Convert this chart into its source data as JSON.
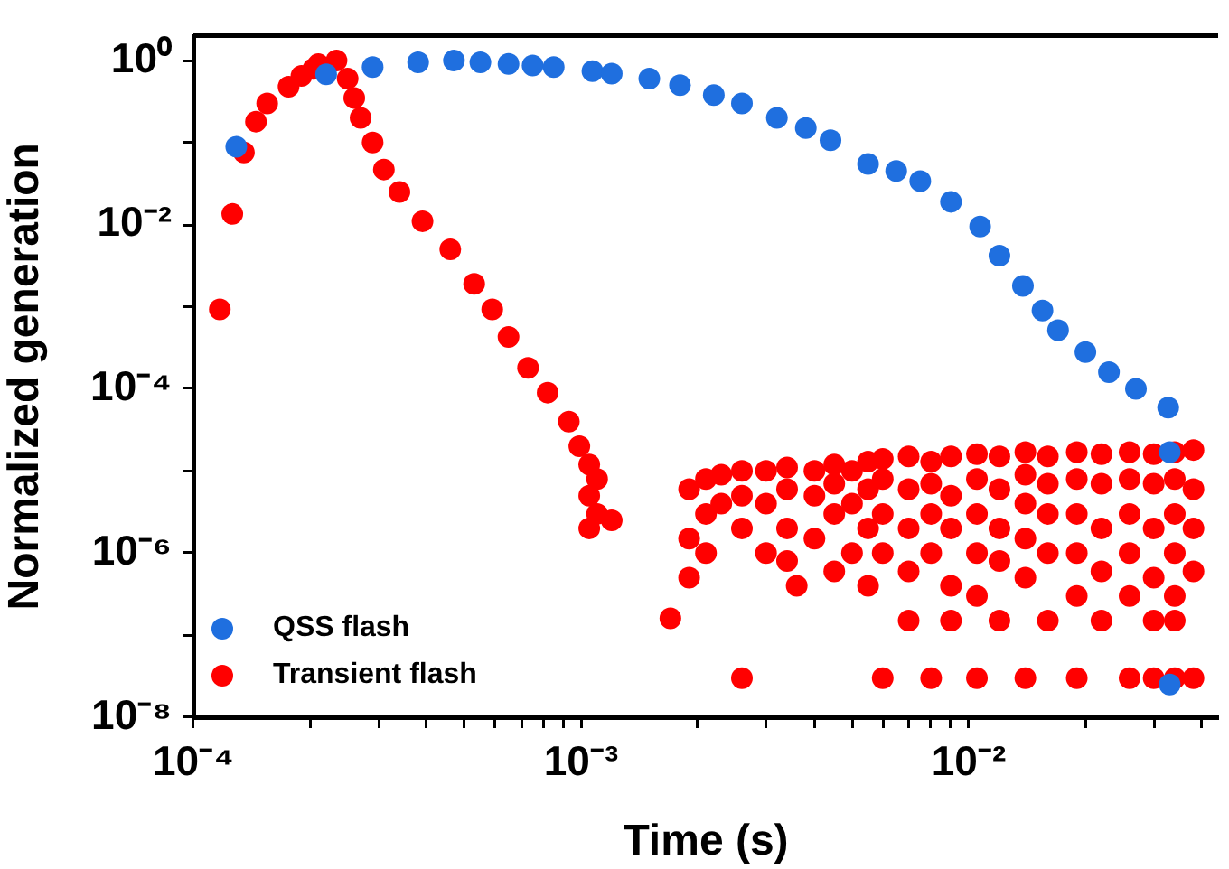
{
  "chart_data": {
    "type": "scatter",
    "xlabel": "Time (s)",
    "ylabel": "Normalized generation",
    "log": "xy",
    "grid": false,
    "legend": "bottom left",
    "marker": "circle",
    "xlim": [
      0.0001,
      0.044
    ],
    "ylim": [
      1e-08,
      2
    ],
    "xticks": [
      {
        "value": 0.0001,
        "label": "10⁻⁴"
      },
      {
        "value": 0.0002,
        "label": null
      },
      {
        "value": 0.0003,
        "label": null
      },
      {
        "value": 0.0004,
        "label": null
      },
      {
        "value": 0.0005,
        "label": null
      },
      {
        "value": 0.0006,
        "label": null
      },
      {
        "value": 0.0007,
        "label": null
      },
      {
        "value": 0.0008,
        "label": null
      },
      {
        "value": 0.0009,
        "label": null
      },
      {
        "value": 0.001,
        "label": "10⁻³"
      },
      {
        "value": 0.002,
        "label": null
      },
      {
        "value": 0.003,
        "label": null
      },
      {
        "value": 0.004,
        "label": null
      },
      {
        "value": 0.005,
        "label": null
      },
      {
        "value": 0.006,
        "label": null
      },
      {
        "value": 0.007,
        "label": null
      },
      {
        "value": 0.008,
        "label": null
      },
      {
        "value": 0.009,
        "label": null
      },
      {
        "value": 0.01,
        "label": "10⁻²"
      },
      {
        "value": 0.02,
        "label": null
      },
      {
        "value": 0.03,
        "label": null
      },
      {
        "value": 0.04,
        "label": null
      }
    ],
    "yticks": [
      {
        "value": 1e-08,
        "label": "10⁻⁸"
      },
      {
        "value": 1e-07,
        "label": null
      },
      {
        "value": 1e-06,
        "label": "10⁻⁶"
      },
      {
        "value": 1e-05,
        "label": null
      },
      {
        "value": 0.0001,
        "label": "10⁻⁴"
      },
      {
        "value": 0.001,
        "label": null
      },
      {
        "value": 0.01,
        "label": "10⁻²"
      },
      {
        "value": 0.1,
        "label": null
      },
      {
        "value": 1,
        "label": "10⁰"
      }
    ],
    "series": [
      {
        "name": "QSS flash",
        "color": "#1f6fdf",
        "x": [
          0.000129,
          0.00022,
          0.00029,
          0.00038,
          0.00047,
          0.00055,
          0.00065,
          0.00075,
          0.00085,
          0.00107,
          0.0012,
          0.0015,
          0.0018,
          0.0022,
          0.0026,
          0.0032,
          0.0038,
          0.0044,
          0.0055,
          0.0065,
          0.0075,
          0.009,
          0.0107,
          0.012,
          0.0138,
          0.0155,
          0.017,
          0.02,
          0.023,
          0.027,
          0.0327,
          0.033,
          0.033
        ],
        "values": [
          0.089,
          0.68,
          0.83,
          0.95,
          1.0,
          0.95,
          0.91,
          0.87,
          0.83,
          0.74,
          0.69,
          0.6,
          0.5,
          0.38,
          0.3,
          0.2,
          0.15,
          0.107,
          0.055,
          0.045,
          0.034,
          0.019,
          0.0095,
          0.0042,
          0.0018,
          0.0009,
          0.00052,
          0.00028,
          0.00016,
          0.0001,
          5.9e-05,
          1.7e-05,
          2.5e-08
        ]
      },
      {
        "name": "Transient flash",
        "color": "#ff0000",
        "x": [
          0.000117,
          0.000126,
          0.000135,
          0.000145,
          0.000155,
          0.000176,
          0.000204,
          0.000234,
          0.00027,
          0.00031,
          0.00046,
          0.00065,
          0.00093,
          0.00019,
          0.00021,
          0.00025,
          0.00026,
          0.00029,
          0.00034,
          0.00039,
          0.00053,
          0.00059,
          0.00073,
          0.00082,
          0.00099,
          0.00105,
          0.00105,
          0.00105,
          0.0011,
          0.0011,
          0.0012,
          0.0017,
          0.0019,
          0.0019,
          0.0019,
          0.0021,
          0.0021,
          0.0021,
          0.0023,
          0.0023,
          0.0026,
          0.0026,
          0.0026,
          0.0026,
          0.003,
          0.003,
          0.003,
          0.0034,
          0.0034,
          0.0034,
          0.0034,
          0.0036,
          0.004,
          0.004,
          0.004,
          0.0045,
          0.0045,
          0.0045,
          0.0045,
          0.005,
          0.005,
          0.005,
          0.0055,
          0.0055,
          0.0055,
          0.0055,
          0.006,
          0.006,
          0.006,
          0.006,
          0.006,
          0.007,
          0.007,
          0.007,
          0.007,
          0.007,
          0.008,
          0.008,
          0.008,
          0.008,
          0.008,
          0.009,
          0.009,
          0.009,
          0.009,
          0.009,
          0.0105,
          0.0105,
          0.0105,
          0.0105,
          0.0105,
          0.0105,
          0.012,
          0.012,
          0.012,
          0.012,
          0.012,
          0.014,
          0.014,
          0.014,
          0.014,
          0.014,
          0.014,
          0.016,
          0.016,
          0.016,
          0.016,
          0.016,
          0.019,
          0.019,
          0.019,
          0.019,
          0.019,
          0.019,
          0.022,
          0.022,
          0.022,
          0.022,
          0.022,
          0.026,
          0.026,
          0.026,
          0.026,
          0.026,
          0.026,
          0.03,
          0.03,
          0.03,
          0.03,
          0.03,
          0.03,
          0.034,
          0.034,
          0.034,
          0.034,
          0.034,
          0.034,
          0.034,
          0.038,
          0.038,
          0.038,
          0.038,
          0.038
        ],
        "values": [
          0.00093,
          0.0135,
          0.076,
          0.18,
          0.3,
          0.48,
          0.79,
          1.0,
          0.2,
          0.047,
          0.005,
          0.00043,
          4e-05,
          0.65,
          0.9,
          0.6,
          0.35,
          0.1,
          0.025,
          0.011,
          0.0019,
          0.00093,
          0.00018,
          9e-05,
          2e-05,
          1.2e-05,
          5e-06,
          2e-06,
          8e-06,
          3e-06,
          2.5e-06,
          1.6e-07,
          6e-06,
          1.5e-06,
          5e-07,
          8e-06,
          3e-06,
          1e-06,
          9e-06,
          4e-06,
          1e-05,
          5e-06,
          2e-06,
          3e-08,
          1e-05,
          4e-06,
          1e-06,
          1.1e-05,
          6e-06,
          2e-06,
          8e-07,
          4e-07,
          1e-05,
          5e-06,
          1.5e-06,
          1.2e-05,
          7e-06,
          3e-06,
          6e-07,
          1e-05,
          4e-06,
          1e-06,
          1.3e-05,
          6e-06,
          2e-06,
          4e-07,
          1.4e-05,
          8e-06,
          3e-06,
          1e-06,
          3e-08,
          1.5e-05,
          6e-06,
          2e-06,
          6e-07,
          1.5e-07,
          1.3e-05,
          7e-06,
          3e-06,
          1e-06,
          3e-08,
          1.5e-05,
          5e-06,
          2e-06,
          4e-07,
          1.5e-07,
          1.6e-05,
          8e-06,
          3e-06,
          1e-06,
          3e-07,
          3e-08,
          1.5e-05,
          6e-06,
          2e-06,
          8e-07,
          1.5e-07,
          1.7e-05,
          9e-06,
          4e-06,
          1.5e-06,
          5e-07,
          3e-08,
          1.5e-05,
          7e-06,
          3e-06,
          1e-06,
          1.5e-07,
          1.7e-05,
          8e-06,
          3e-06,
          1e-06,
          3e-07,
          3e-08,
          1.6e-05,
          7e-06,
          2e-06,
          6e-07,
          1.5e-07,
          1.7e-05,
          8e-06,
          3e-06,
          1e-06,
          3e-07,
          3e-08,
          1.6e-05,
          7e-06,
          2e-06,
          5e-07,
          1.5e-07,
          3e-08,
          1.7e-05,
          8e-06,
          3e-06,
          1e-06,
          3e-07,
          1.5e-07,
          3e-08,
          1.8e-05,
          6e-06,
          2e-06,
          6e-07,
          3e-08
        ]
      }
    ]
  }
}
